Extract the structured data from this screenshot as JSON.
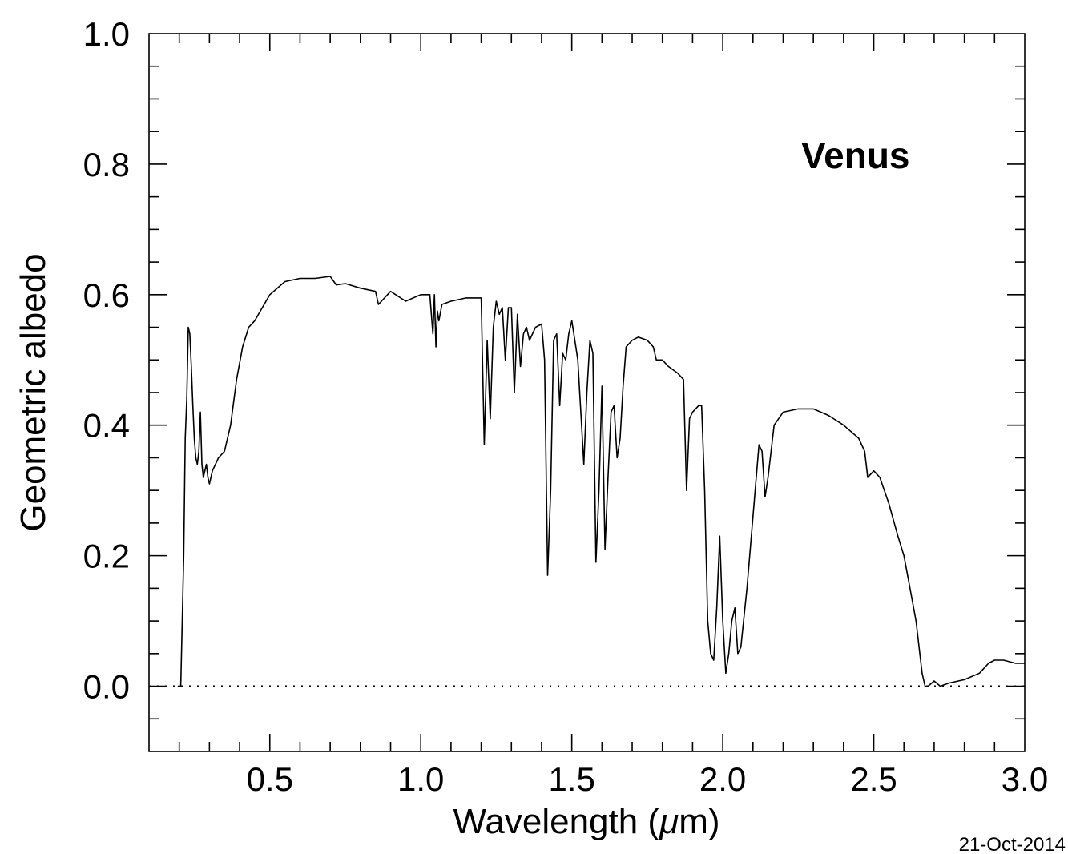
{
  "chart_data": {
    "type": "line",
    "title": "",
    "annotation": "Venus",
    "xlabel_main": "Wavelength (",
    "xlabel_mu": "μ",
    "xlabel_unit": "m)",
    "ylabel": "Geometric albedo",
    "date": "21-Oct-2014",
    "xlim": [
      0.1,
      3.0
    ],
    "ylim": [
      -0.1,
      1.0
    ],
    "xticks": [
      0.5,
      1.0,
      1.5,
      2.0,
      2.5,
      3.0
    ],
    "xtick_labels": [
      "0.5",
      "1.0",
      "1.5",
      "2.0",
      "2.5",
      "3.0"
    ],
    "yticks": [
      0.0,
      0.2,
      0.4,
      0.6,
      0.8,
      1.0
    ],
    "ytick_labels": [
      "0.0",
      "0.2",
      "0.4",
      "0.6",
      "0.8",
      "1.0"
    ],
    "reference_line": {
      "y": 0.0,
      "style": "dotted"
    },
    "series": [
      {
        "color": "#000000",
        "x": [
          0.195,
          0.205,
          0.215,
          0.22,
          0.225,
          0.23,
          0.235,
          0.24,
          0.245,
          0.25,
          0.255,
          0.26,
          0.265,
          0.27,
          0.275,
          0.28,
          0.285,
          0.29,
          0.295,
          0.3,
          0.31,
          0.33,
          0.35,
          0.37,
          0.39,
          0.41,
          0.43,
          0.45,
          0.5,
          0.55,
          0.6,
          0.65,
          0.7,
          0.72,
          0.75,
          0.8,
          0.85,
          0.86,
          0.9,
          0.95,
          1.0,
          1.03,
          1.04,
          1.045,
          1.05,
          1.055,
          1.06,
          1.07,
          1.1,
          1.15,
          1.18,
          1.2,
          1.21,
          1.22,
          1.23,
          1.24,
          1.25,
          1.26,
          1.27,
          1.28,
          1.29,
          1.3,
          1.31,
          1.32,
          1.33,
          1.34,
          1.35,
          1.36,
          1.38,
          1.4,
          1.41,
          1.42,
          1.43,
          1.44,
          1.45,
          1.46,
          1.47,
          1.48,
          1.49,
          1.5,
          1.52,
          1.54,
          1.55,
          1.56,
          1.57,
          1.58,
          1.59,
          1.6,
          1.61,
          1.62,
          1.63,
          1.64,
          1.65,
          1.66,
          1.67,
          1.68,
          1.7,
          1.72,
          1.75,
          1.77,
          1.78,
          1.8,
          1.82,
          1.85,
          1.87,
          1.88,
          1.89,
          1.9,
          1.92,
          1.93,
          1.94,
          1.95,
          1.96,
          1.97,
          1.98,
          1.99,
          2.0,
          2.01,
          2.02,
          2.03,
          2.04,
          2.05,
          2.06,
          2.08,
          2.1,
          2.12,
          2.13,
          2.14,
          2.15,
          2.17,
          2.2,
          2.25,
          2.3,
          2.35,
          2.4,
          2.45,
          2.47,
          2.48,
          2.5,
          2.52,
          2.55,
          2.58,
          2.6,
          2.62,
          2.64,
          2.65,
          2.66,
          2.67,
          2.68,
          2.7,
          2.72,
          2.75,
          2.8,
          2.85,
          2.88,
          2.9,
          2.93,
          2.97,
          3.0
        ],
        "y": [
          0.0,
          0.0,
          0.2,
          0.38,
          0.44,
          0.55,
          0.54,
          0.49,
          0.43,
          0.38,
          0.35,
          0.34,
          0.36,
          0.42,
          0.34,
          0.32,
          0.33,
          0.34,
          0.32,
          0.31,
          0.33,
          0.35,
          0.36,
          0.4,
          0.47,
          0.52,
          0.55,
          0.56,
          0.6,
          0.62,
          0.625,
          0.625,
          0.628,
          0.615,
          0.617,
          0.61,
          0.605,
          0.585,
          0.605,
          0.59,
          0.6,
          0.6,
          0.54,
          0.6,
          0.52,
          0.575,
          0.56,
          0.585,
          0.59,
          0.595,
          0.595,
          0.595,
          0.37,
          0.53,
          0.41,
          0.55,
          0.59,
          0.57,
          0.58,
          0.5,
          0.58,
          0.58,
          0.45,
          0.57,
          0.49,
          0.54,
          0.55,
          0.53,
          0.55,
          0.555,
          0.5,
          0.17,
          0.3,
          0.53,
          0.54,
          0.43,
          0.51,
          0.5,
          0.54,
          0.56,
          0.5,
          0.34,
          0.45,
          0.53,
          0.51,
          0.19,
          0.3,
          0.46,
          0.21,
          0.32,
          0.42,
          0.43,
          0.35,
          0.38,
          0.46,
          0.52,
          0.53,
          0.535,
          0.53,
          0.52,
          0.5,
          0.5,
          0.49,
          0.48,
          0.47,
          0.3,
          0.41,
          0.42,
          0.43,
          0.43,
          0.3,
          0.1,
          0.05,
          0.04,
          0.12,
          0.23,
          0.1,
          0.02,
          0.05,
          0.1,
          0.12,
          0.05,
          0.06,
          0.15,
          0.26,
          0.37,
          0.36,
          0.29,
          0.32,
          0.4,
          0.42,
          0.425,
          0.425,
          0.415,
          0.4,
          0.38,
          0.36,
          0.32,
          0.33,
          0.32,
          0.28,
          0.23,
          0.2,
          0.15,
          0.1,
          0.06,
          0.02,
          0.0,
          0.0,
          0.008,
          0.0,
          0.005,
          0.01,
          0.02,
          0.035,
          0.04,
          0.04,
          0.035,
          0.035
        ]
      }
    ]
  }
}
